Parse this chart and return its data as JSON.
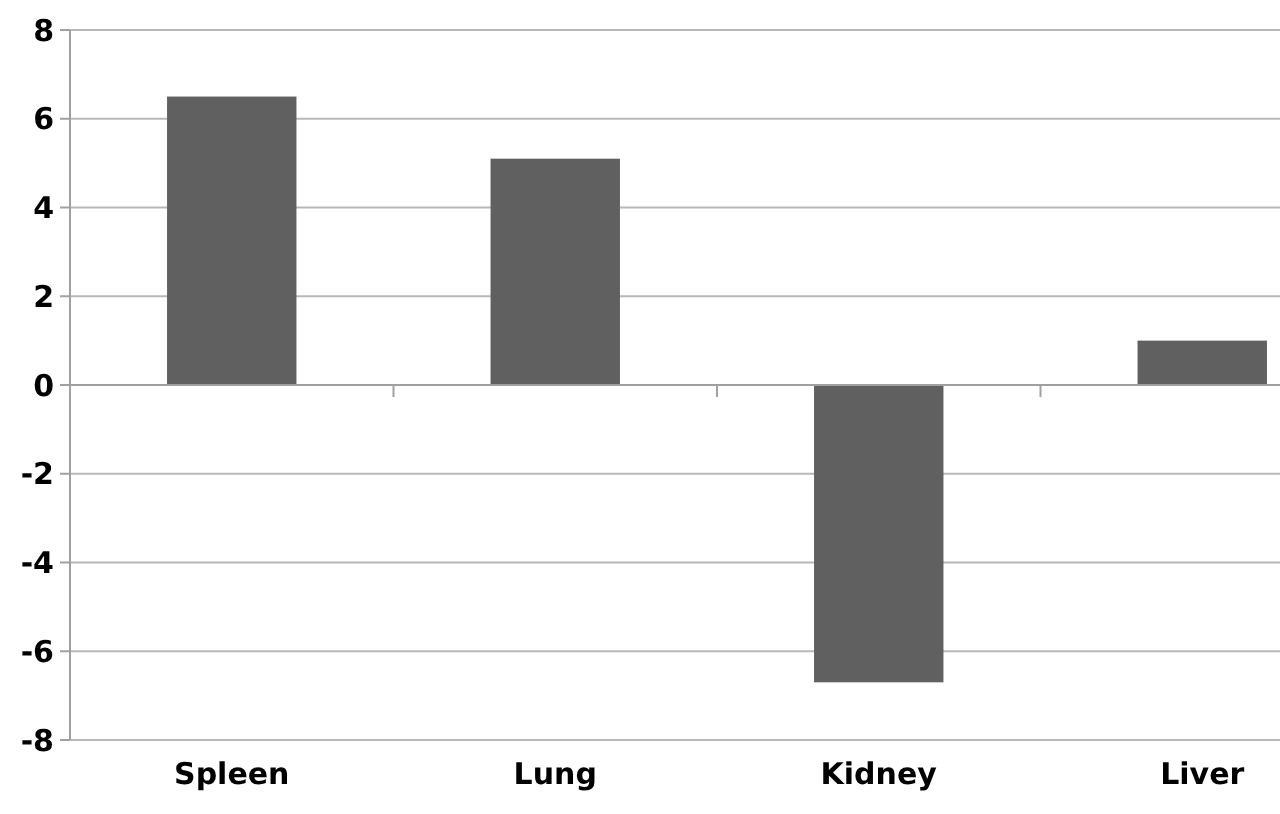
{
  "chart_data": {
    "type": "bar",
    "categories": [
      "Spleen",
      "Lung",
      "Kidney",
      "Liver"
    ],
    "values": [
      6.5,
      5.1,
      -6.7,
      1.0
    ],
    "color": "#606060",
    "ylim": [
      -8,
      8
    ],
    "yticks": [
      -8,
      -6,
      -4,
      -2,
      0,
      2,
      4,
      6,
      8
    ],
    "grid": "y"
  }
}
